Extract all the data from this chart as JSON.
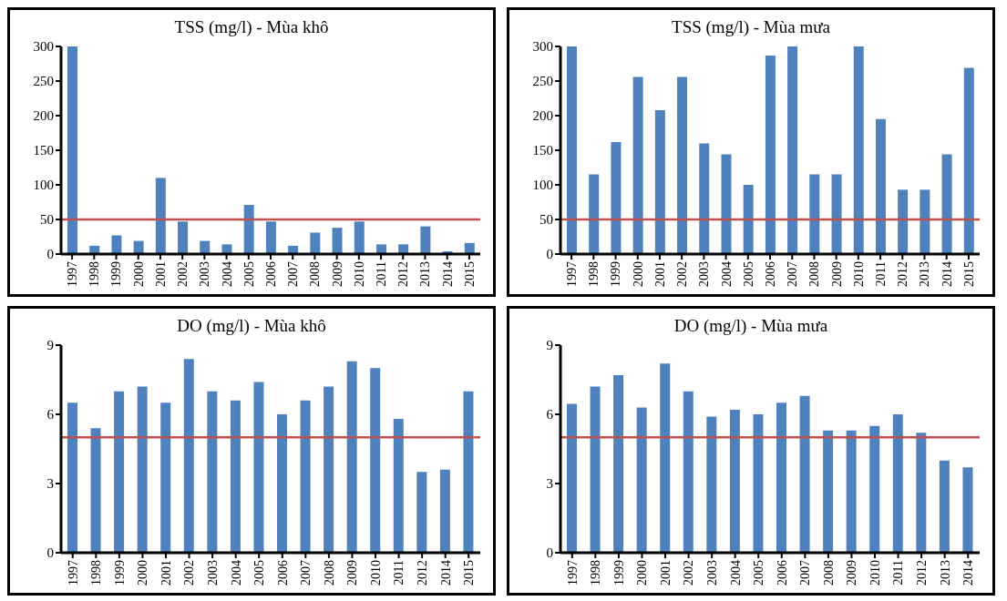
{
  "chart_data": [
    {
      "type": "bar",
      "title": "TSS (mg/l) - Mùa khô",
      "categories": [
        "1997",
        "1998",
        "1999",
        "2000",
        "2001",
        "2002",
        "2003",
        "2004",
        "2005",
        "2006",
        "2007",
        "2008",
        "2009",
        "2010",
        "2011",
        "2012",
        "2013",
        "2014",
        "2015"
      ],
      "series": [
        {
          "color": "#4f81bd",
          "values": [
            300,
            12,
            27,
            19,
            110,
            47,
            19,
            14,
            71,
            47,
            12,
            31,
            38,
            47,
            14,
            14,
            40,
            4,
            16
          ]
        }
      ],
      "ylim": [
        0,
        300
      ],
      "yticks": [
        0,
        50,
        100,
        150,
        200,
        250,
        300
      ],
      "ref_lines": [
        {
          "axis": "y",
          "value": 50,
          "color": "#c0504d"
        }
      ]
    },
    {
      "type": "bar",
      "title": "TSS (mg/l) - Mùa mưa",
      "categories": [
        "1997",
        "1998",
        "1999",
        "2000",
        "2001",
        "2002",
        "2003",
        "2004",
        "2005",
        "2006",
        "2007",
        "2008",
        "2009",
        "2010",
        "2011",
        "2012",
        "2013",
        "2014",
        "2015"
      ],
      "series": [
        {
          "color": "#4f81bd",
          "values": [
            300,
            115,
            162,
            256,
            208,
            256,
            160,
            144,
            100,
            287,
            300,
            115,
            115,
            300,
            195,
            93,
            93,
            144,
            269
          ]
        }
      ],
      "ylim": [
        0,
        300
      ],
      "yticks": [
        0,
        50,
        100,
        150,
        200,
        250,
        300
      ],
      "ref_lines": [
        {
          "axis": "y",
          "value": 50,
          "color": "#c0504d"
        }
      ]
    },
    {
      "type": "bar",
      "title": "DO (mg/l) - Mùa khô",
      "categories": [
        "1997",
        "1998",
        "1999",
        "2000",
        "2001",
        "2002",
        "2003",
        "2004",
        "2005",
        "2006",
        "2007",
        "2008",
        "2009",
        "2010",
        "2011",
        "2012",
        "2014",
        "2015"
      ],
      "series": [
        {
          "color": "#4f81bd",
          "values": [
            6.5,
            5.4,
            7.0,
            7.2,
            6.5,
            8.4,
            7.0,
            6.6,
            7.4,
            6.0,
            6.6,
            7.2,
            8.3,
            8.0,
            5.8,
            3.5,
            3.6,
            7.0
          ]
        }
      ],
      "ylim": [
        0,
        9
      ],
      "yticks": [
        0,
        3,
        6,
        9
      ],
      "ref_lines": [
        {
          "axis": "y",
          "value": 5,
          "color": "#c0504d"
        }
      ]
    },
    {
      "type": "bar",
      "title": "DO (mg/l) - Mùa mưa",
      "categories": [
        "1997",
        "1998",
        "1999",
        "2000",
        "2001",
        "2002",
        "2003",
        "2004",
        "2005",
        "2006",
        "2007",
        "2008",
        "2009",
        "2010",
        "2011",
        "2012",
        "2013",
        "2014"
      ],
      "series": [
        {
          "color": "#4f81bd",
          "values": [
            6.45,
            7.2,
            7.7,
            6.3,
            8.2,
            7.0,
            5.9,
            6.2,
            6.0,
            6.5,
            6.8,
            5.3,
            5.3,
            5.5,
            6.0,
            5.2,
            4.0,
            3.7
          ]
        }
      ],
      "ylim": [
        0,
        9
      ],
      "yticks": [
        0,
        3,
        6,
        9
      ],
      "ref_lines": [
        {
          "axis": "y",
          "value": 5,
          "color": "#c0504d"
        }
      ]
    }
  ]
}
